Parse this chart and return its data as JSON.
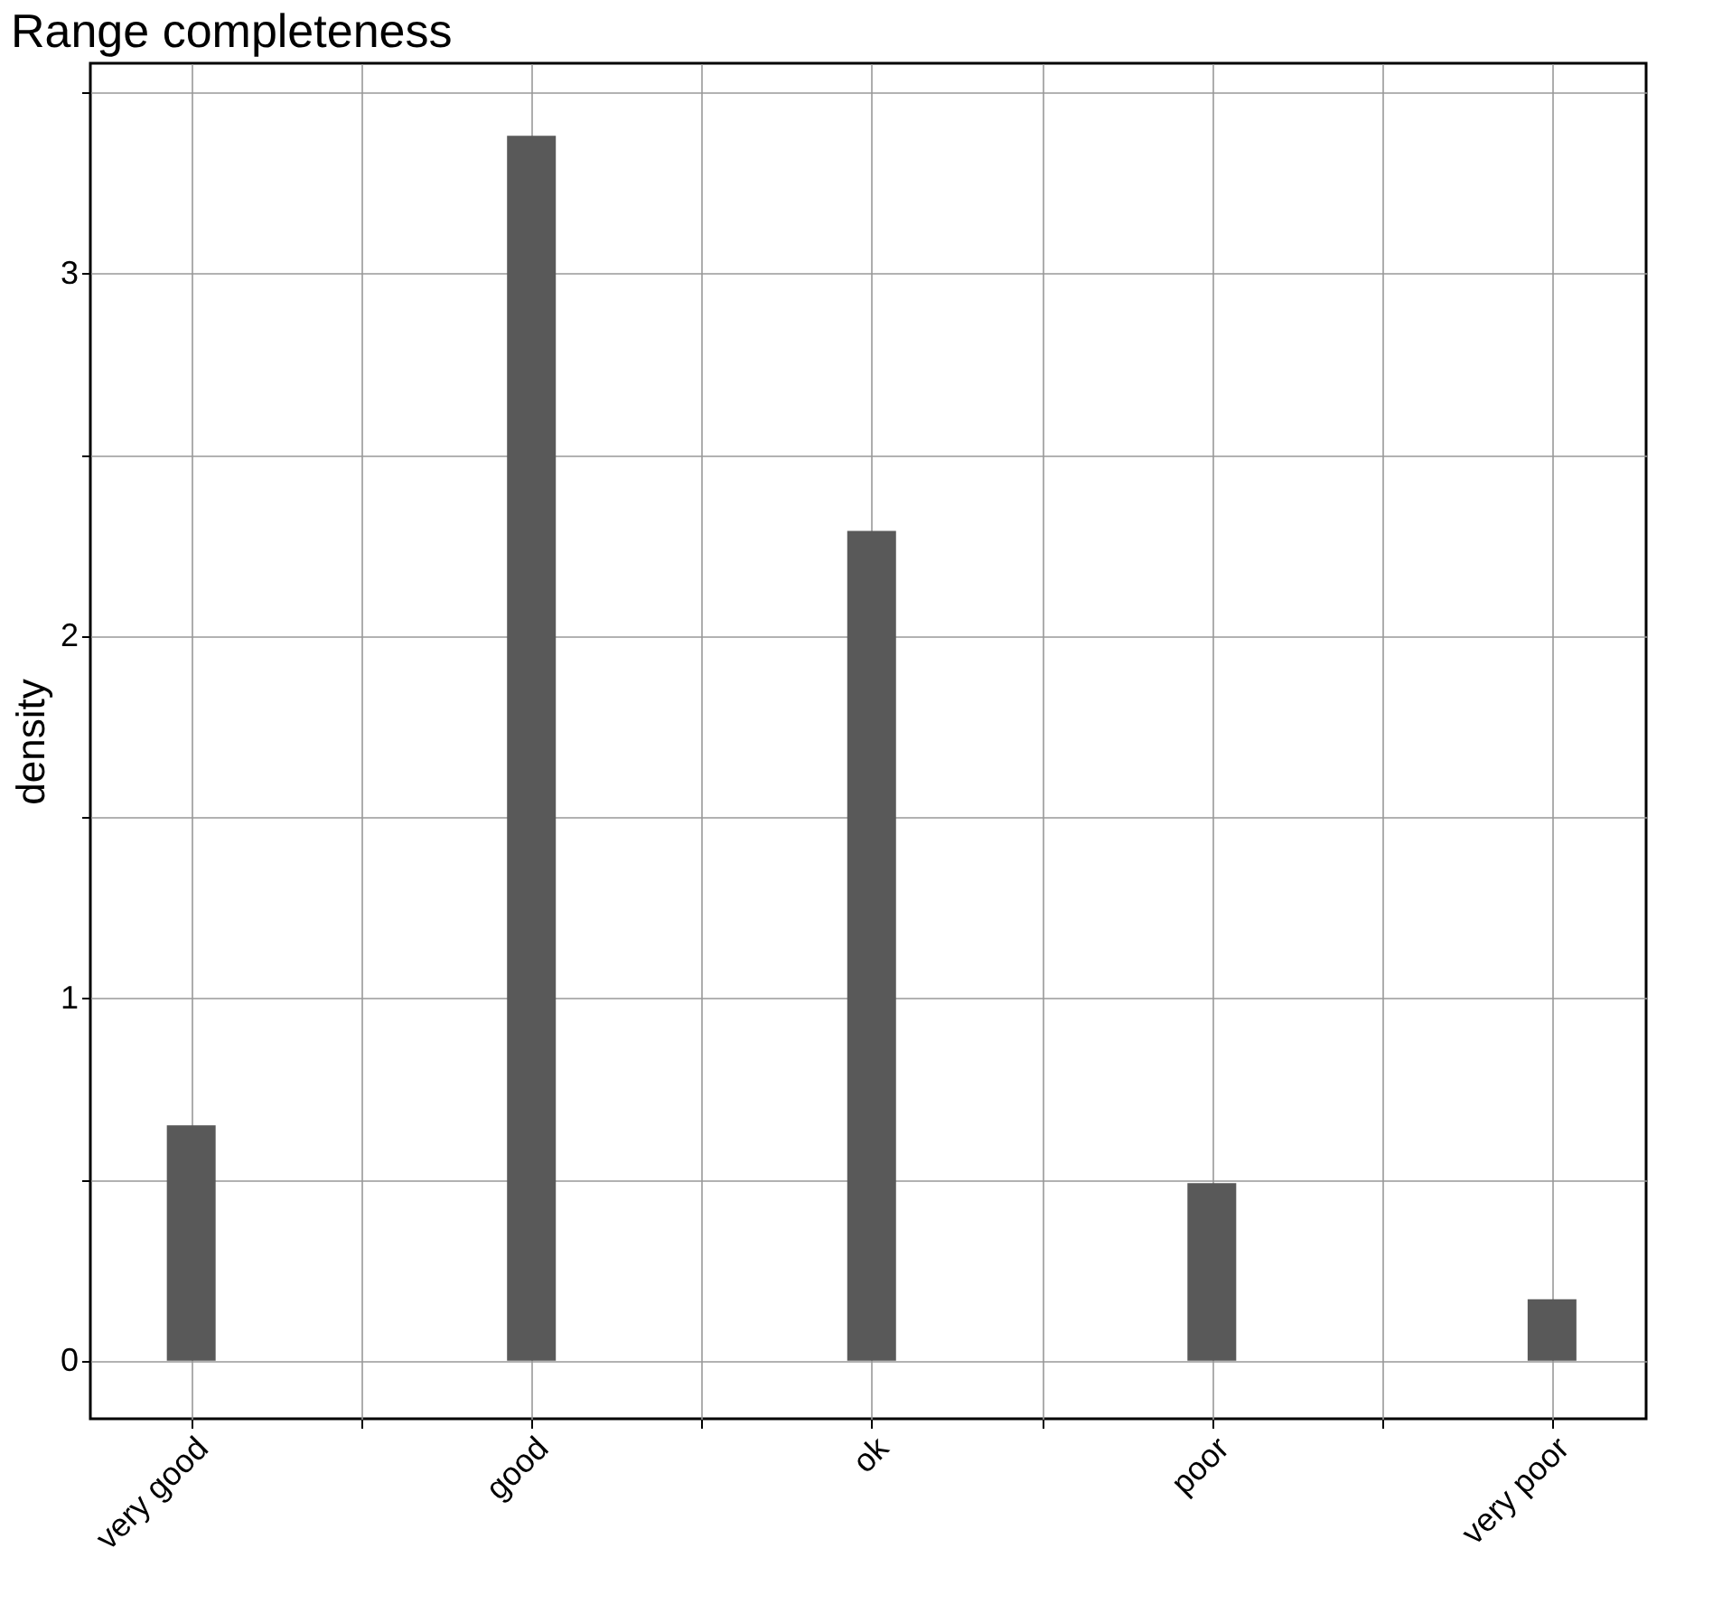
{
  "chart_data": {
    "type": "bar",
    "title": "Range completeness",
    "ylabel": "density",
    "categories": [
      "very good",
      "good",
      "ok",
      "poor",
      "very poor"
    ],
    "values": [
      0.65,
      3.38,
      2.29,
      0.49,
      0.17
    ],
    "color": "#595959",
    "ylim": [
      -0.16,
      3.58
    ],
    "yticks": [
      0,
      {
        "value": 0.5,
        "label": null
      },
      1,
      {
        "value": 1.5,
        "label": null
      },
      2,
      {
        "value": 2.5,
        "label": null
      },
      3,
      {
        "value": 3.5,
        "label": null
      }
    ],
    "grid": true
  }
}
